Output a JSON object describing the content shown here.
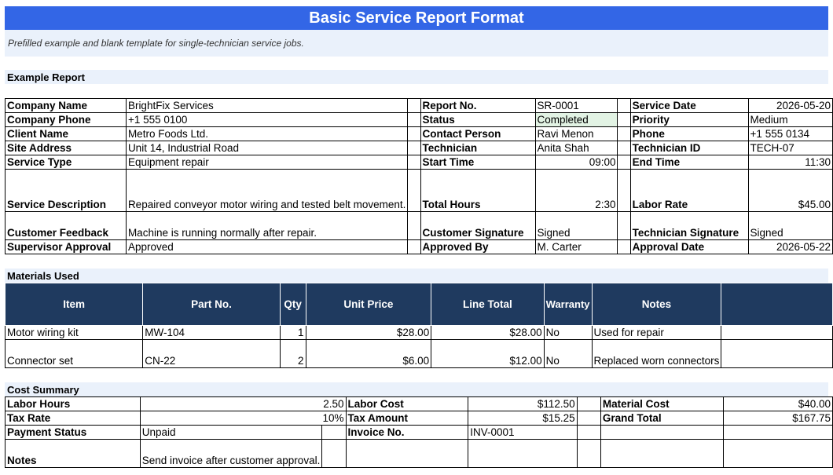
{
  "title": "Basic Service Report Format",
  "subtitle": "Prefilled example and blank template for single-technician service jobs.",
  "sections": {
    "example": "Example Report",
    "materials": "Materials Used",
    "cost": "Cost Summary"
  },
  "report": {
    "company_name_label": "Company Name",
    "company_name": "BrightFix Services",
    "report_no_label": "Report No.",
    "report_no": "SR-0001",
    "service_date_label": "Service Date",
    "service_date": "2026-05-20",
    "company_phone_label": "Company Phone",
    "company_phone": "+1 555 0100",
    "status_label": "Status",
    "status": "Completed",
    "priority_label": "Priority",
    "priority": "Medium",
    "client_name_label": "Client Name",
    "client_name": "Metro Foods Ltd.",
    "contact_person_label": "Contact Person",
    "contact_person": "Ravi Menon",
    "phone_label": "Phone",
    "phone": "+1 555 0134",
    "site_address_label": "Site Address",
    "site_address": "Unit 14, Industrial Road",
    "technician_label": "Technician",
    "technician": "Anita Shah",
    "technician_id_label": "Technician ID",
    "technician_id": "TECH-07",
    "service_type_label": "Service Type",
    "service_type": "Equipment repair",
    "start_time_label": "Start Time",
    "start_time": "09:00",
    "end_time_label": "End Time",
    "end_time": "11:30",
    "service_description_label": "Service Description",
    "service_description": "Repaired conveyor motor wiring and tested belt movement.",
    "total_hours_label": "Total Hours",
    "total_hours": "2:30",
    "labor_rate_label": "Labor Rate",
    "labor_rate": "$45.00",
    "customer_feedback_label": "Customer Feedback",
    "customer_feedback": "Machine is running normally after repair.",
    "customer_signature_label": "Customer Signature",
    "customer_signature": "Signed",
    "technician_signature_label": "Technician Signature",
    "technician_signature": "Signed",
    "supervisor_approval_label": "Supervisor Approval",
    "supervisor_approval": "Approved",
    "approved_by_label": "Approved By",
    "approved_by": "M. Carter",
    "approval_date_label": "Approval Date",
    "approval_date": "2026-05-22"
  },
  "materials": {
    "headers": [
      "Item",
      "Part No.",
      "Qty",
      "Unit Price",
      "Line Total",
      "Warranty",
      "Notes"
    ],
    "rows": [
      {
        "item": "Motor wiring kit",
        "part_no": "MW-104",
        "qty": "1",
        "unit_price": "$28.00",
        "line_total": "$28.00",
        "warranty": "No",
        "notes": "Used for repair"
      },
      {
        "item": "Connector set",
        "part_no": "CN-22",
        "qty": "2",
        "unit_price": "$6.00",
        "line_total": "$12.00",
        "warranty": "No",
        "notes": "Replaced worn connectors"
      }
    ]
  },
  "cost": {
    "labor_hours_label": "Labor Hours",
    "labor_hours": "2.50",
    "labor_cost_label": "Labor Cost",
    "labor_cost": "$112.50",
    "material_cost_label": "Material Cost",
    "material_cost": "$40.00",
    "tax_rate_label": "Tax Rate",
    "tax_rate": "10%",
    "tax_amount_label": "Tax Amount",
    "tax_amount": "$15.25",
    "grand_total_label": "Grand Total",
    "grand_total": "$167.75",
    "payment_status_label": "Payment Status",
    "payment_status": "Unpaid",
    "invoice_no_label": "Invoice No.",
    "invoice_no": "INV-0001",
    "notes_label": "Notes",
    "notes": "Send invoice after customer approval."
  },
  "colors": {
    "title_bg": "#3366e6",
    "band_bg": "#eaf1fb",
    "header_bg": "#1f3a5f",
    "status_bg": "#e2f3e4"
  }
}
